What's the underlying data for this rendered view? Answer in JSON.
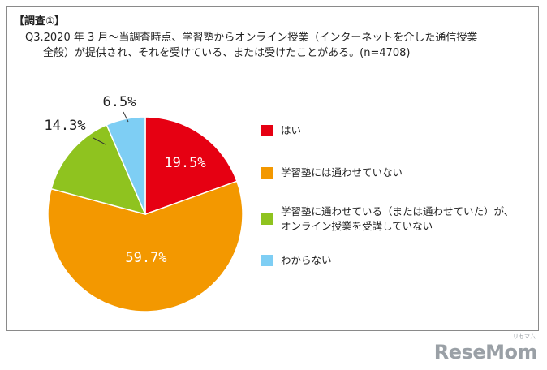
{
  "header": {
    "section_label": "【調査①】",
    "question_line1": "Q3.2020 年 3 月～当調査時点、学習塾からオンライン授業（インターネットを介した通信授業",
    "question_line2": "全般）が提供され、それを受けている、または受けたことがある。(n=4708)"
  },
  "chart_data": {
    "type": "pie",
    "title": "",
    "n": 4708,
    "slices": [
      {
        "label": "はい",
        "value": 19.5,
        "display": "19.5%",
        "color": "#e60012"
      },
      {
        "label": "学習塾には通わせていない",
        "value": 59.7,
        "display": "59.7%",
        "color": "#f39800"
      },
      {
        "label": "学習塾に通わせている（または通わせていた）が、オンライン授業を受講していない",
        "value": 14.3,
        "display": "14.3%",
        "color": "#8fc31f"
      },
      {
        "label": "わからない",
        "value": 6.5,
        "display": "6.5%",
        "color": "#7ecef4"
      }
    ],
    "legend_placement": "right"
  },
  "legend": {
    "items": [
      {
        "lines": [
          "はい"
        ],
        "color": "#e60012"
      },
      {
        "lines": [
          "学習塾には通わせていない"
        ],
        "color": "#f39800"
      },
      {
        "lines": [
          "学習塾に通わせている（または通わせていた）が、",
          "オンライン授業を受講していない"
        ],
        "color": "#8fc31f"
      },
      {
        "lines": [
          "わからない"
        ],
        "color": "#7ecef4"
      }
    ]
  },
  "watermark": {
    "text": "ReseMom",
    "sub": "リセマム"
  }
}
